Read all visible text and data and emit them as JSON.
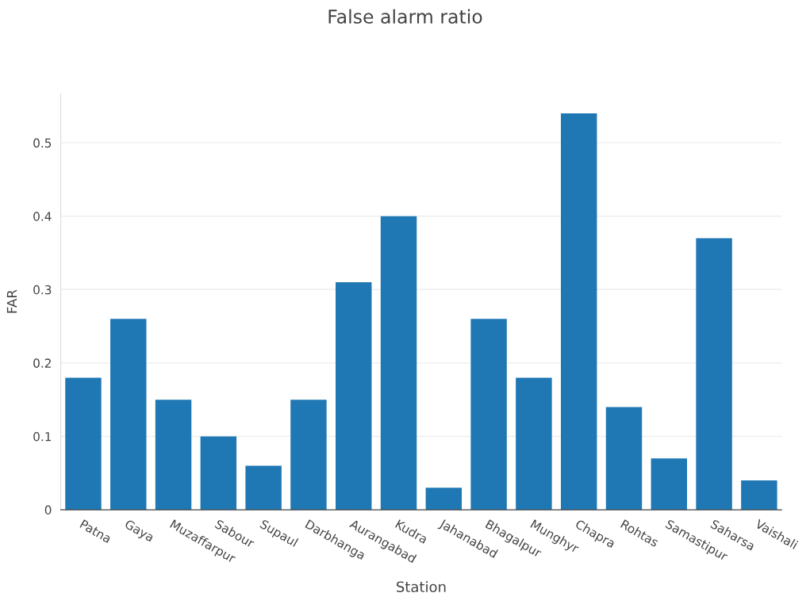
{
  "chart_data": {
    "type": "bar",
    "title": "False alarm ratio",
    "xlabel": "Station",
    "ylabel": "FAR",
    "categories": [
      "Patna",
      "Gaya",
      "Muzaffarpur",
      "Sabour",
      "Supaul",
      "Darbhanga",
      "Aurangabad",
      "Kudra",
      "Jahanabad",
      "Bhagalpur",
      "Munghyr",
      "Chapra",
      "Rohtas",
      "Samastipur",
      "Saharsa",
      "Vaishali"
    ],
    "values": [
      0.18,
      0.26,
      0.15,
      0.1,
      0.06,
      0.15,
      0.31,
      0.4,
      0.03,
      0.26,
      0.18,
      0.54,
      0.14,
      0.07,
      0.37,
      0.04
    ],
    "color": "#1f77b4",
    "ylim": [
      0,
      0.567
    ],
    "yticks": [
      0,
      0.1,
      0.2,
      0.3,
      0.4,
      0.5
    ],
    "grid": "y",
    "legend": false
  }
}
